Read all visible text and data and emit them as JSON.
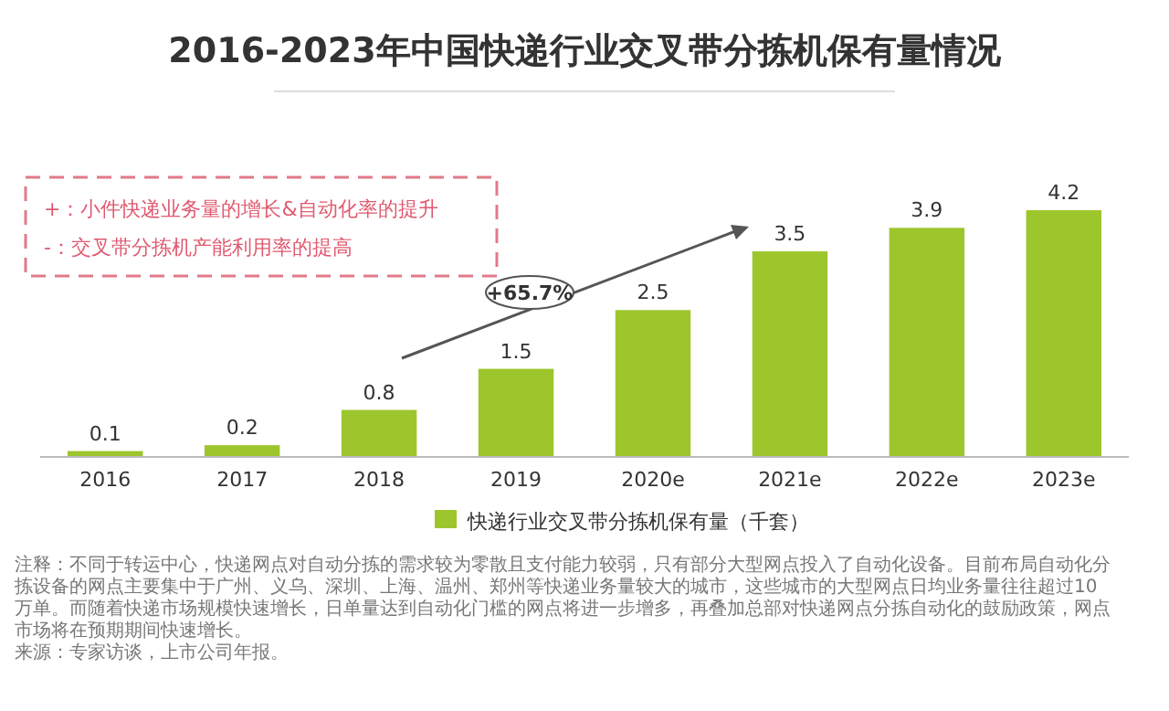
{
  "chart_data": {
    "type": "bar",
    "title": "2016-2023年中国快递行业交叉带分拣机保有量情况",
    "categories": [
      "2016",
      "2017",
      "2018",
      "2019",
      "2020e",
      "2021e",
      "2022e",
      "2023e"
    ],
    "series": [
      {
        "name": "快递行业交叉带分拣机保有量（千套）",
        "color": "#9dc62d",
        "values": [
          0.1,
          0.2,
          0.8,
          1.5,
          2.5,
          3.5,
          3.9,
          4.2
        ]
      }
    ],
    "data_labels": true,
    "legend": "bottom",
    "annotations": [
      "+：小件快递业务量的增长&自动化率的提升",
      "-：交叉带分拣机产能利用率的提高",
      "+65.7%",
      "注释：不同于转运中心，快递网点对自动分拣的需求较为零散且支付能力较弱，只有部分大型网点投入了自动化设备。目前布局自动化分拣设备的网点主要集中于广州、义乌、深圳、上海、温州、郑州等快递业务量较大的城市，这些城市的大型网点日均业务量往往超过10万单。而随着快递市场规模快速增长，日单量达到自动化门槛的网点将进一步增多，再叠加总部对快递网点分拣自动化的鼓励政策，网点市场将在预期期间快速增长。",
      "来源：专家访谈，上市公司年报。"
    ]
  }
}
